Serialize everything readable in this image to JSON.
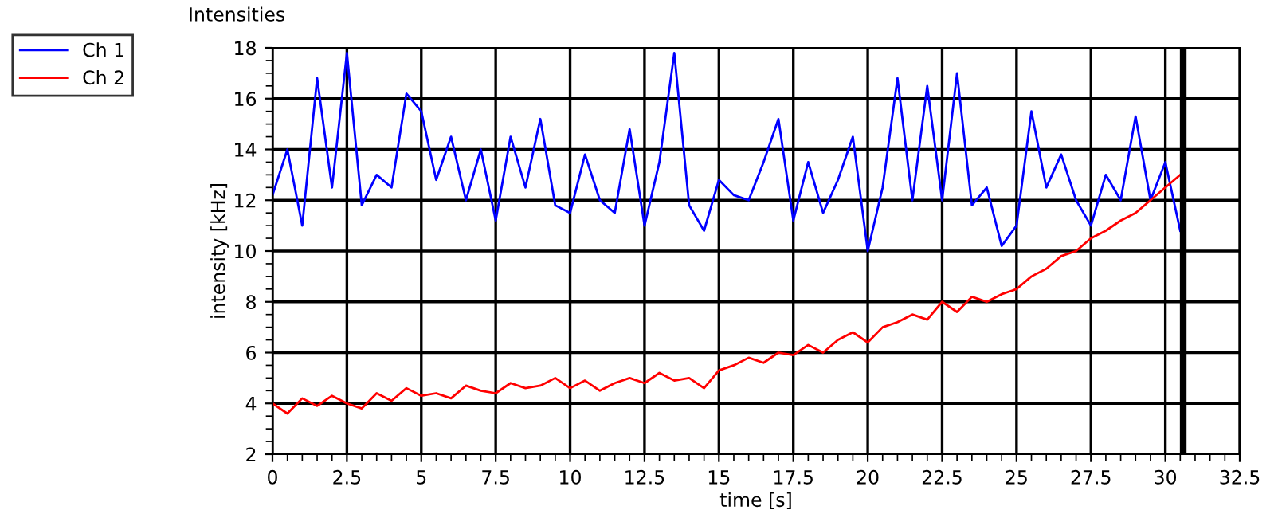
{
  "chart_data": {
    "type": "line",
    "title": "Intensities",
    "xlabel": "time [s]",
    "ylabel": "intensity [kHz]",
    "x": [
      0,
      0.5,
      1,
      1.5,
      2,
      2.5,
      3,
      3.5,
      4,
      4.5,
      5,
      5.5,
      6,
      6.5,
      7,
      7.5,
      8,
      8.5,
      9,
      9.5,
      10,
      10.5,
      11,
      11.5,
      12,
      12.5,
      13,
      13.5,
      14,
      14.5,
      15,
      15.5,
      16,
      16.5,
      17,
      17.5,
      18,
      18.5,
      19,
      19.5,
      20,
      20.5,
      21,
      21.5,
      22,
      22.5,
      23,
      23.5,
      24,
      24.5,
      25,
      25.5,
      26,
      26.5,
      27,
      27.5,
      28,
      28.5,
      29,
      29.5,
      30,
      30.5
    ],
    "series": [
      {
        "name": "Ch 1",
        "color": "#0000ff",
        "values": [
          12.2,
          14.0,
          11.0,
          16.8,
          12.5,
          17.8,
          11.8,
          13.0,
          12.5,
          16.2,
          15.5,
          12.8,
          14.5,
          12.0,
          14.0,
          11.2,
          14.5,
          12.5,
          15.2,
          11.8,
          11.5,
          13.8,
          12.0,
          11.5,
          14.8,
          11.0,
          13.5,
          17.8,
          11.8,
          10.8,
          12.8,
          12.2,
          12.0,
          13.5,
          15.2,
          11.2,
          13.5,
          11.5,
          12.8,
          14.5,
          10.0,
          12.5,
          16.8,
          12.0,
          16.5,
          12.0,
          17.0,
          11.8,
          12.5,
          10.2,
          11.0,
          15.5,
          12.5,
          13.8,
          12.0,
          11.0,
          13.0,
          12.0,
          15.3,
          12.0,
          13.5,
          10.8
        ]
      },
      {
        "name": "Ch 2",
        "color": "#ff0000",
        "values": [
          4.0,
          3.6,
          4.2,
          3.9,
          4.3,
          4.0,
          3.8,
          4.4,
          4.1,
          4.6,
          4.3,
          4.4,
          4.2,
          4.7,
          4.5,
          4.4,
          4.8,
          4.6,
          4.7,
          5.0,
          4.6,
          4.9,
          4.5,
          4.8,
          5.0,
          4.8,
          5.2,
          4.9,
          5.0,
          4.6,
          5.3,
          5.5,
          5.8,
          5.6,
          6.0,
          5.9,
          6.3,
          6.0,
          6.5,
          6.8,
          6.4,
          7.0,
          7.2,
          7.5,
          7.3,
          8.0,
          7.6,
          8.2,
          8.0,
          8.3,
          8.5,
          9.0,
          9.3,
          9.8,
          10.0,
          10.5,
          10.8,
          11.2,
          11.5,
          12.0,
          12.5,
          13.0
        ]
      }
    ],
    "xlim": [
      0,
      32.5
    ],
    "xticks": [
      0,
      2.5,
      5,
      7.5,
      10,
      12.5,
      15,
      17.5,
      20,
      22.5,
      25,
      27.5,
      30,
      32.5
    ],
    "ylim": [
      2,
      18
    ],
    "yticks": [
      2,
      4,
      6,
      8,
      10,
      12,
      14,
      16,
      18
    ],
    "ref_lines": [
      {
        "axis": "x",
        "value": 30.6,
        "color": "#000000"
      }
    ],
    "grid": true,
    "legend": "top left",
    "marker": "none",
    "line_style": "solid"
  }
}
